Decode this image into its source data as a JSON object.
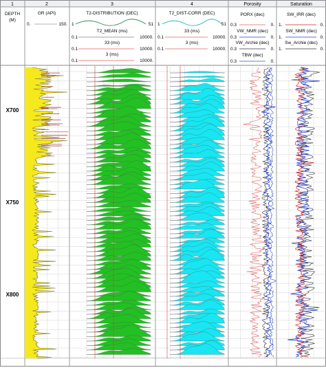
{
  "tracks": [
    {
      "number": "1",
      "header": [
        "DEPTH",
        "(M)"
      ]
    },
    {
      "number": "2",
      "curves": [
        {
          "name": "GR (API)",
          "min": "0.",
          "max": "150.",
          "color": "#999999"
        }
      ]
    },
    {
      "number": "3",
      "curves": [
        {
          "name": "T2-DISTRIBUTION (DEC)",
          "min": "1",
          "max": "51",
          "color": "#2e8b57"
        },
        {
          "name": "T2_MEAN (ms)",
          "min": "0.1",
          "max": "10000.",
          "color": "#808080"
        },
        {
          "name": "33 (ms)",
          "min": "0.1",
          "max": "10000.",
          "color": "#e06060"
        },
        {
          "name": "3 (ms)",
          "min": "0.1",
          "max": "10000.",
          "color": "#e06060"
        }
      ]
    },
    {
      "number": "4",
      "curves": [
        {
          "name": "T2_DIST-CORR (DEC)",
          "min": "1",
          "max": "51",
          "color": "#1fb5c9"
        },
        {
          "name": "33 (ms)",
          "min": "0.1",
          "max": "10000.",
          "color": "#e06060"
        },
        {
          "name": "3 (ms)",
          "min": "0.1",
          "max": "10000.",
          "color": "#e06060"
        }
      ]
    },
    {
      "number": "Porosity",
      "curves": [
        {
          "name": "PORX (dec)",
          "min": "0.3",
          "max": "0.",
          "color": "#e06060"
        },
        {
          "name": "VW_NMR (dec)",
          "min": "0.3",
          "max": "0.",
          "color": "#1f3fd0"
        },
        {
          "name": "VW_Archie (dec)",
          "min": "0.3",
          "max": "0.",
          "color": "#333333"
        },
        {
          "name": "TBW (dec)",
          "min": "0.3",
          "max": "0.",
          "color": "#3050c0"
        }
      ]
    },
    {
      "number": "Saturation",
      "curves": [
        {
          "name": "SW_IRR (dec)",
          "min": "1.",
          "max": "0.",
          "color": "#d02020"
        },
        {
          "name": "SW_NMR (dec)",
          "min": "1.",
          "max": "0.",
          "color": "#1f3fd0"
        },
        {
          "name": "Sw_Archie (dec)",
          "min": "1.",
          "max": "0.",
          "color": "#333333"
        }
      ]
    }
  ],
  "depth_labels": [
    "X700",
    "X750",
    "X800"
  ],
  "colors": {
    "gr_fill": "#f5e81c",
    "gr_line": "#6b6b1a",
    "t2_fill": "#22c022",
    "t2corr_fill": "#18e6f2",
    "grid": "#c8c8c8",
    "marker": "#d04040"
  }
}
